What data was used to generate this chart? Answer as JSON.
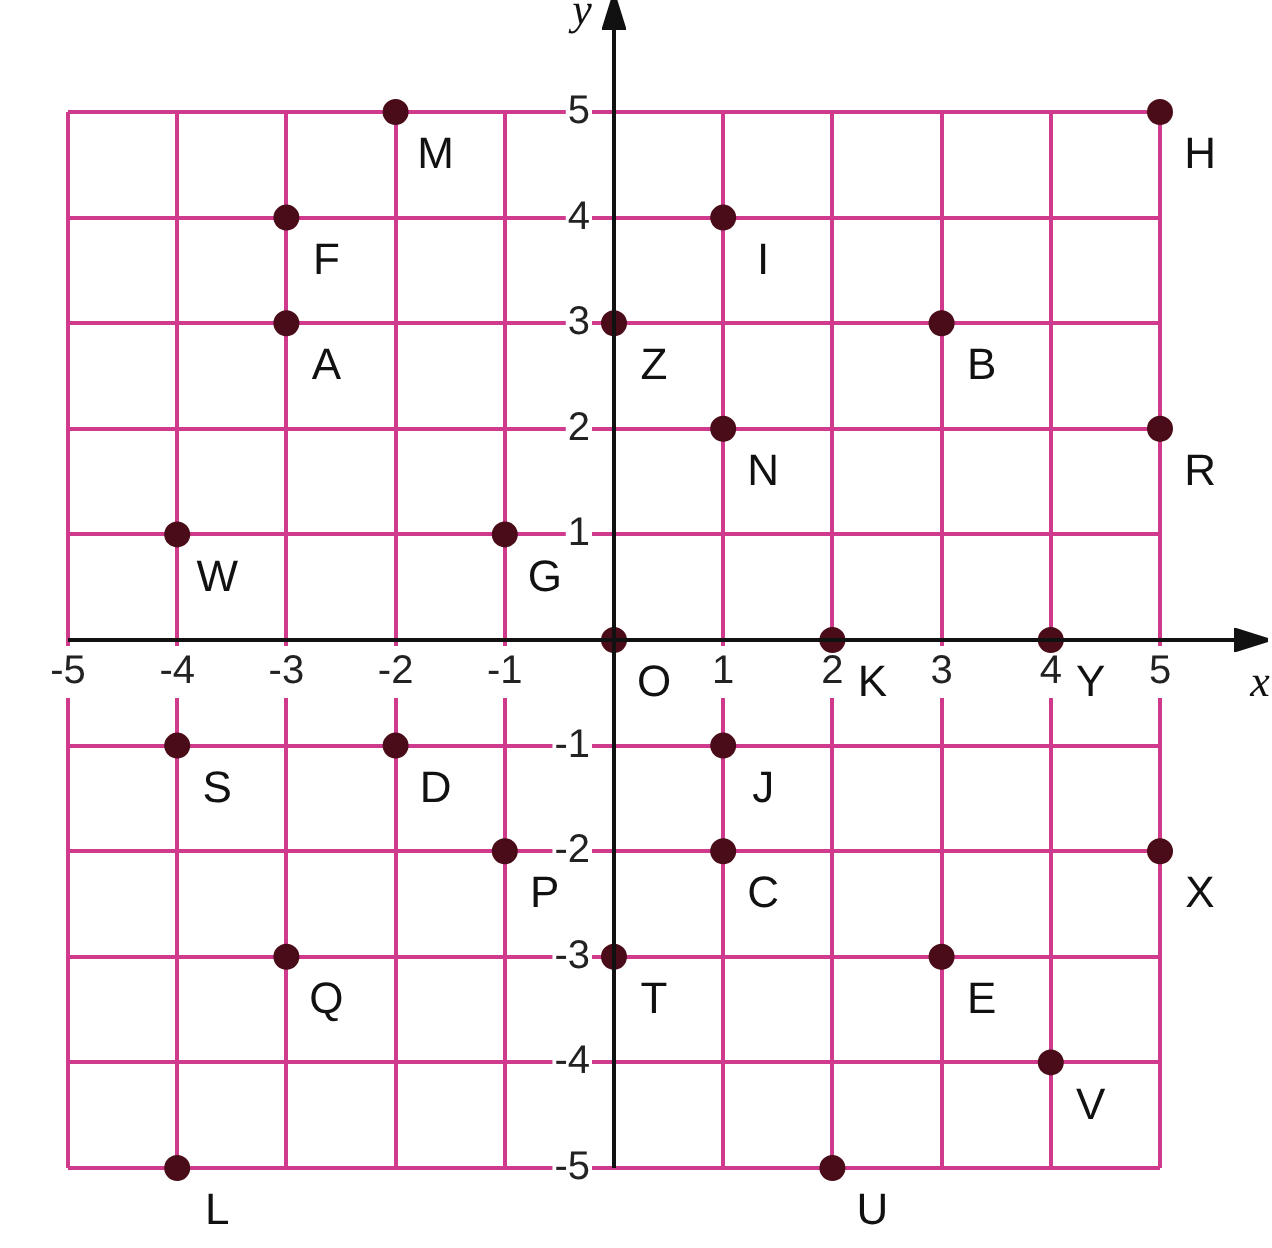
{
  "chart_data": {
    "type": "scatter",
    "xlabel": "x",
    "ylabel": "y",
    "x": [
      -3,
      -2,
      -3,
      1,
      0,
      3,
      5,
      5,
      1,
      -4,
      -1,
      0,
      2,
      4,
      -4,
      -2,
      1,
      -1,
      1,
      5,
      -3,
      0,
      3,
      4,
      -4,
      2
    ],
    "values": [
      4,
      5,
      3,
      4,
      3,
      3,
      5,
      2,
      2,
      1,
      1,
      0,
      0,
      0,
      -1,
      -1,
      -1,
      -2,
      -2,
      -2,
      -3,
      -3,
      -3,
      -4,
      -5,
      -5
    ],
    "color": "#4a0c18",
    "marker": "circle",
    "xlim": [
      -5,
      5
    ],
    "ylim": [
      -5,
      5
    ],
    "xticks": [
      -5,
      -4,
      -3,
      -2,
      -1,
      1,
      2,
      3,
      4,
      5
    ],
    "yticks": [
      -5,
      -4,
      -3,
      -2,
      -1,
      1,
      2,
      3,
      4,
      5
    ],
    "grid": true,
    "legend": false,
    "annotations": [
      {
        "text": "F",
        "x": -3,
        "y": 4
      },
      {
        "text": "M",
        "x": -2,
        "y": 5
      },
      {
        "text": "A",
        "x": -3,
        "y": 3
      },
      {
        "text": "I",
        "x": 1,
        "y": 4
      },
      {
        "text": "Z",
        "x": 0,
        "y": 3
      },
      {
        "text": "B",
        "x": 3,
        "y": 3
      },
      {
        "text": "H",
        "x": 5,
        "y": 5
      },
      {
        "text": "R",
        "x": 5,
        "y": 2
      },
      {
        "text": "N",
        "x": 1,
        "y": 2
      },
      {
        "text": "W",
        "x": -4,
        "y": 1
      },
      {
        "text": "G",
        "x": -1,
        "y": 1
      },
      {
        "text": "O",
        "x": 0,
        "y": 0
      },
      {
        "text": "K",
        "x": 2,
        "y": 0
      },
      {
        "text": "Y",
        "x": 4,
        "y": 0
      },
      {
        "text": "S",
        "x": -4,
        "y": -1
      },
      {
        "text": "D",
        "x": -2,
        "y": -1
      },
      {
        "text": "J",
        "x": 1,
        "y": -1
      },
      {
        "text": "P",
        "x": -1,
        "y": -2
      },
      {
        "text": "C",
        "x": 1,
        "y": -2
      },
      {
        "text": "X",
        "x": 5,
        "y": -2
      },
      {
        "text": "Q",
        "x": -3,
        "y": -3
      },
      {
        "text": "T",
        "x": 0,
        "y": -3
      },
      {
        "text": "E",
        "x": 3,
        "y": -3
      },
      {
        "text": "V",
        "x": 4,
        "y": -4
      },
      {
        "text": "L",
        "x": -4,
        "y": -5
      },
      {
        "text": "U",
        "x": 2,
        "y": -5
      }
    ]
  }
}
